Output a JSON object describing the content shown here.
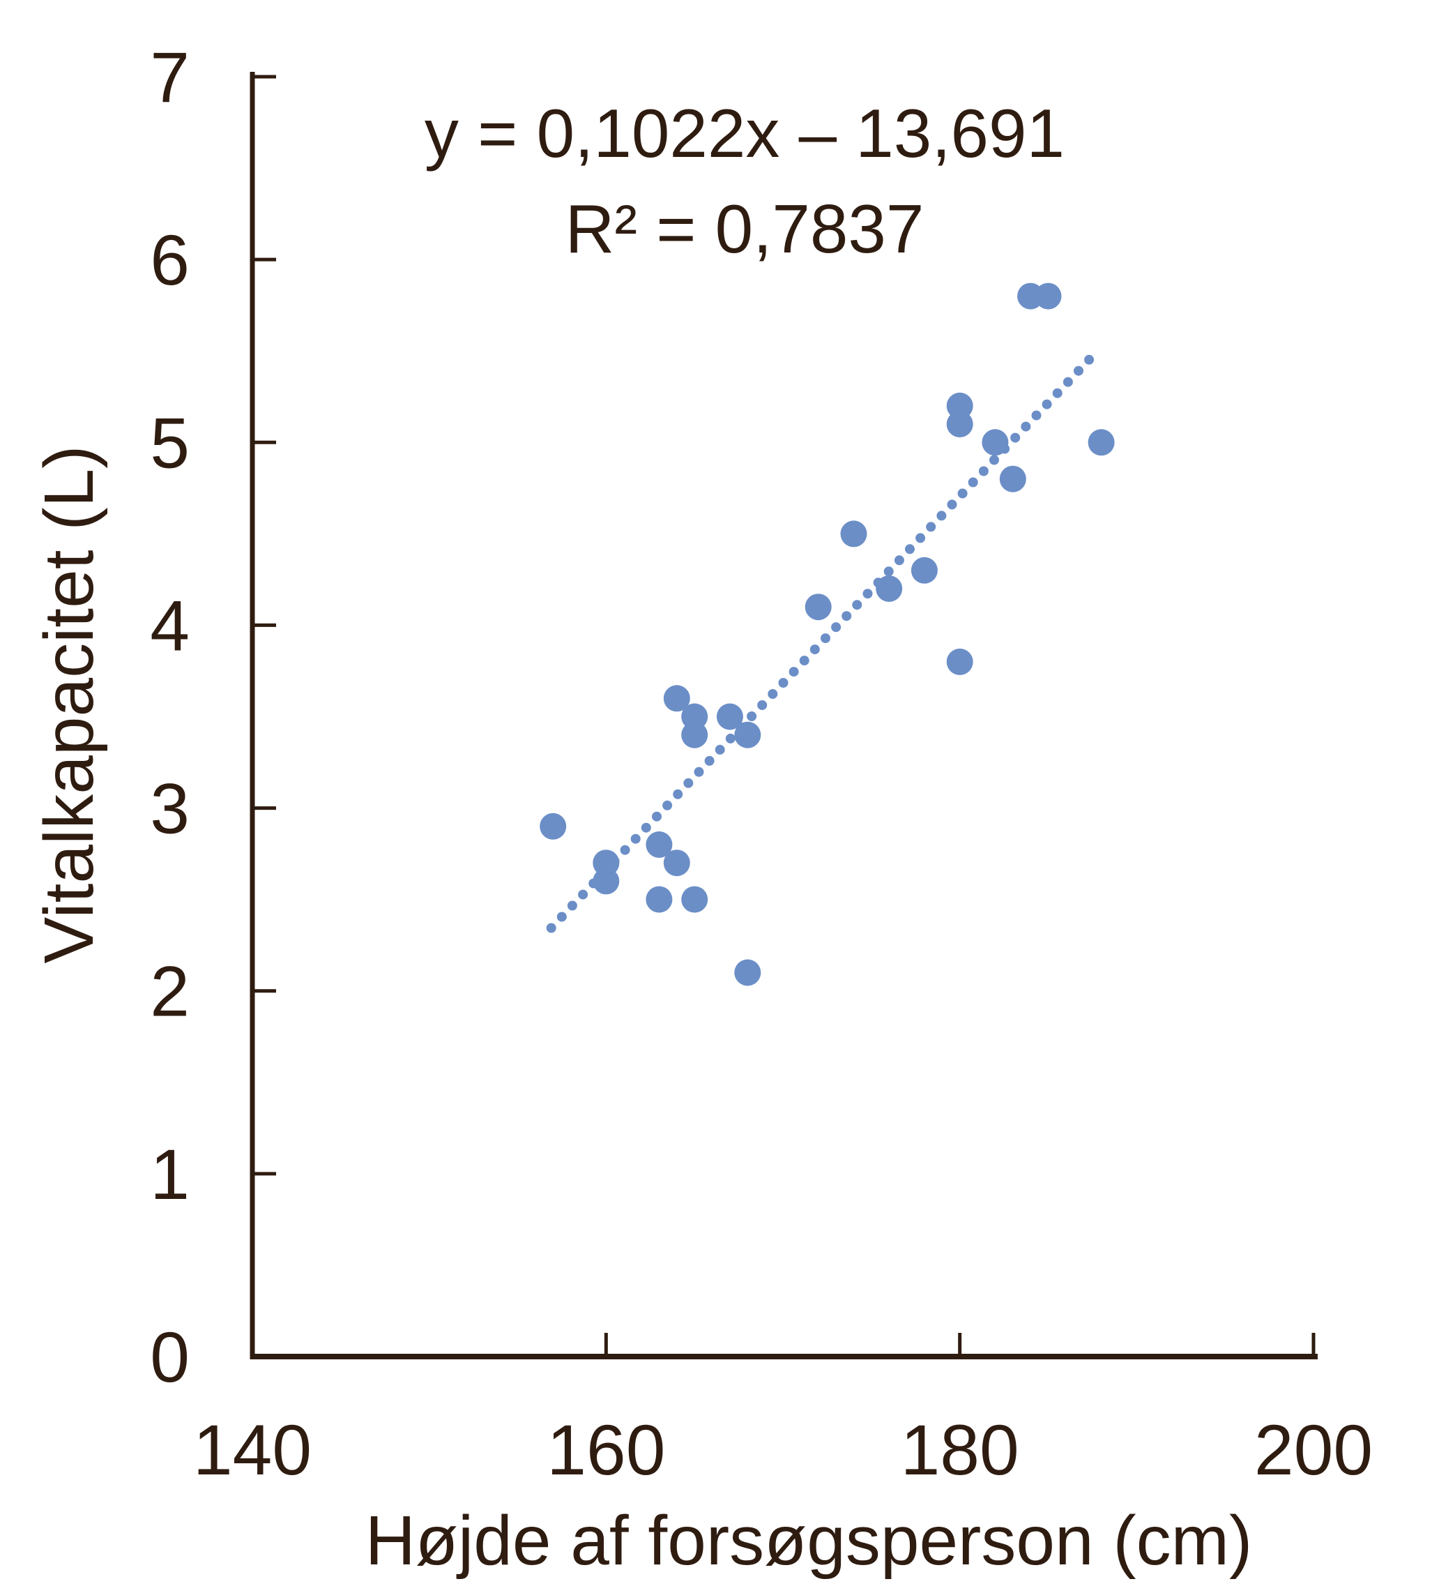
{
  "chart_data": {
    "type": "scatter",
    "title": "",
    "xlabel": "Højde af forsøgsperson (cm)",
    "ylabel": "Vitalkapacitet (L)",
    "xlim": [
      140,
      200
    ],
    "ylim": [
      0,
      7
    ],
    "xticks": [
      140,
      160,
      180,
      200
    ],
    "yticks": [
      0,
      1,
      2,
      3,
      4,
      5,
      6,
      7
    ],
    "grid": false,
    "legend": "none",
    "points": [
      [
        157,
        2.9
      ],
      [
        160,
        2.7
      ],
      [
        160,
        2.6
      ],
      [
        163,
        2.8
      ],
      [
        163,
        2.5
      ],
      [
        164,
        2.7
      ],
      [
        165,
        2.5
      ],
      [
        168,
        2.1
      ],
      [
        164,
        3.6
      ],
      [
        165,
        3.5
      ],
      [
        165,
        3.4
      ],
      [
        167,
        3.5
      ],
      [
        168,
        3.4
      ],
      [
        172,
        4.1
      ],
      [
        174,
        4.5
      ],
      [
        176,
        4.2
      ],
      [
        178,
        4.3
      ],
      [
        180,
        3.8
      ],
      [
        180,
        5.1
      ],
      [
        180,
        5.2
      ],
      [
        182,
        5.0
      ],
      [
        183,
        4.8
      ],
      [
        184,
        5.8
      ],
      [
        185,
        5.8
      ],
      [
        188,
        5.0
      ]
    ],
    "trendline": {
      "slope": 0.1022,
      "intercept": -13.691,
      "x_start": 156.9,
      "x_end": 187.8,
      "style": "dotted"
    },
    "annotations": {
      "equation": "y = 0,1022x – 13,691",
      "r_squared": "R² = 0,7837"
    },
    "colors": {
      "marker": "#6b8ec7",
      "axis_and_text": "#2f1c10"
    }
  }
}
